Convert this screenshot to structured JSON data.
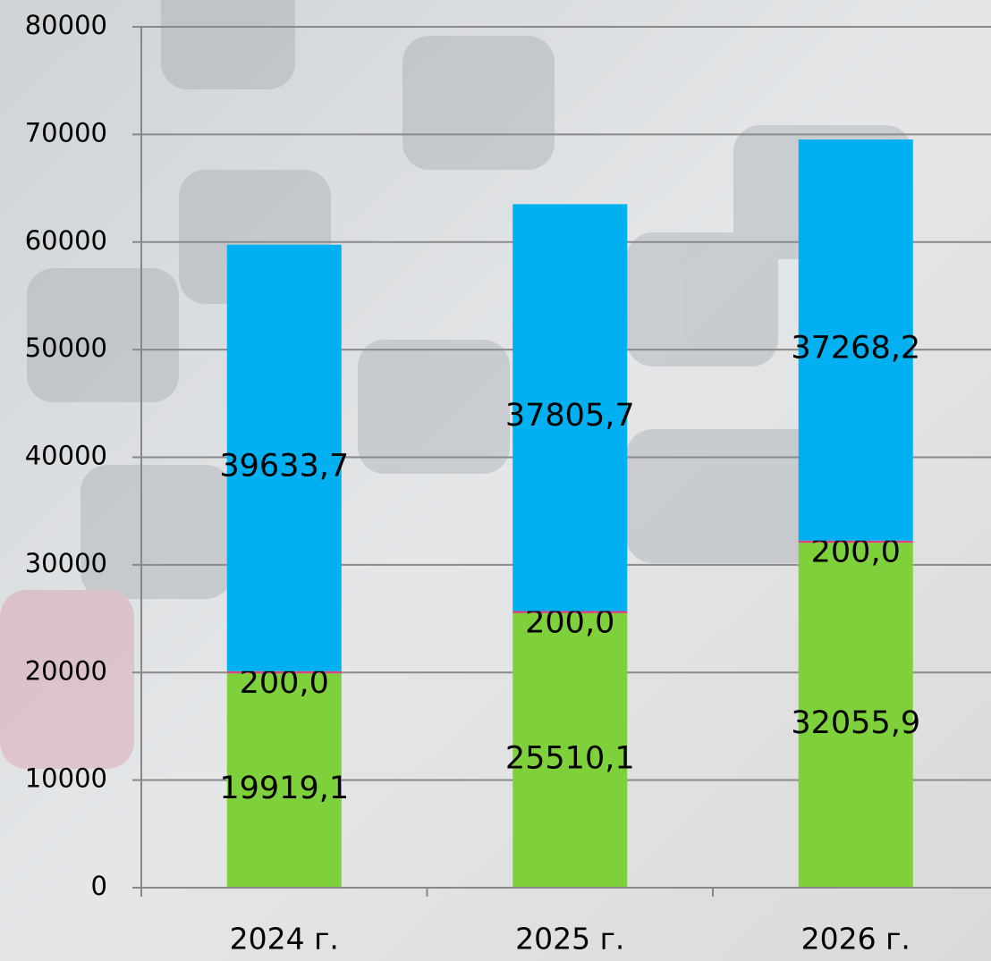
{
  "chart_data": {
    "type": "stacked-bar",
    "categories": [
      "2024 г.",
      "2025 г.",
      "2026 г."
    ],
    "series": [
      {
        "color": "#7fd13b",
        "values": [
          19919.1,
          25510.1,
          32055.9
        ],
        "value_labels": [
          "19919,1",
          "25510,1",
          "32055,9"
        ]
      },
      {
        "color": "#e0417a",
        "values": [
          200,
          200,
          200
        ],
        "value_labels": [
          "200,0",
          "200,0",
          "200,0"
        ]
      },
      {
        "color": "#00b0f0",
        "values": [
          39633.7,
          37805.7,
          37268.2
        ],
        "value_labels": [
          "39633,7",
          "37805,7",
          "37268,2"
        ]
      }
    ],
    "ylim": [
      0,
      80000
    ],
    "yticks": [
      0,
      10000,
      20000,
      30000,
      40000,
      50000,
      60000,
      70000,
      80000
    ],
    "grid": true
  }
}
